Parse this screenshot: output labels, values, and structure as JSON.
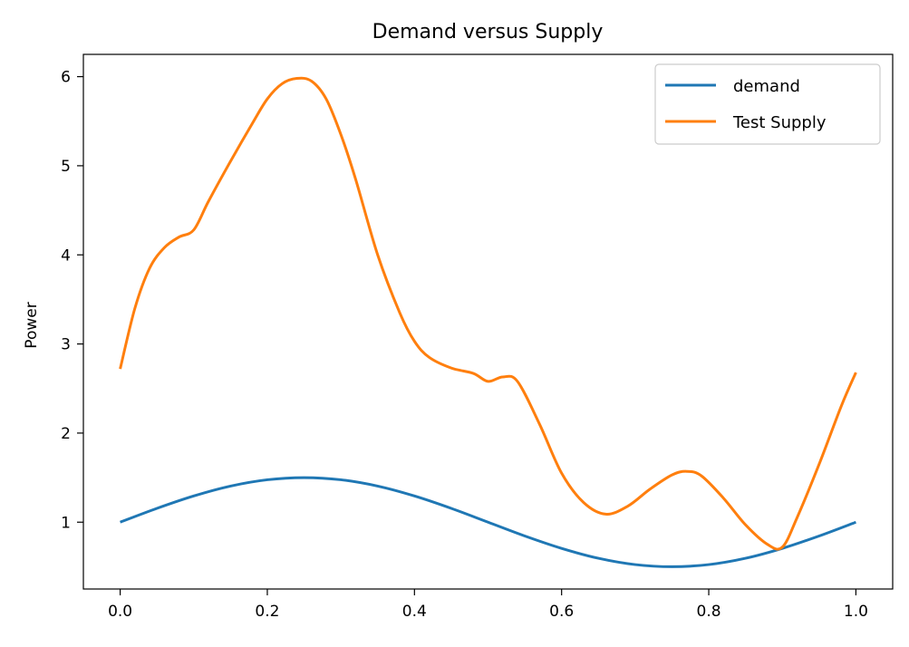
{
  "chart_data": {
    "type": "line",
    "title": "Demand versus Supply",
    "xlabel": "",
    "ylabel": "Power",
    "xlim": [
      -0.05,
      1.05
    ],
    "ylim": [
      0.25,
      6.25
    ],
    "xticks": [
      0.0,
      0.2,
      0.4,
      0.6,
      0.8,
      1.0
    ],
    "xtick_labels": [
      "0.0",
      "0.2",
      "0.4",
      "0.6",
      "0.8",
      "1.0"
    ],
    "yticks": [
      1,
      2,
      3,
      4,
      5,
      6
    ],
    "ytick_labels": [
      "1",
      "2",
      "3",
      "4",
      "5",
      "6"
    ],
    "grid": false,
    "legend_position": "top-right",
    "series": [
      {
        "name": "demand",
        "color": "#1f77b4",
        "x": [
          0.0,
          0.05,
          0.1,
          0.15,
          0.2,
          0.25,
          0.3,
          0.35,
          0.4,
          0.45,
          0.5,
          0.55,
          0.6,
          0.65,
          0.7,
          0.75,
          0.8,
          0.85,
          0.9,
          0.95,
          1.0
        ],
        "y": [
          1.0,
          1.155,
          1.294,
          1.405,
          1.476,
          1.5,
          1.476,
          1.405,
          1.294,
          1.155,
          1.0,
          0.845,
          0.706,
          0.595,
          0.524,
          0.5,
          0.524,
          0.595,
          0.706,
          0.845,
          1.0
        ]
      },
      {
        "name": "Test Supply",
        "color": "#ff7f0e",
        "x": [
          0.0,
          0.02,
          0.04,
          0.06,
          0.08,
          0.1,
          0.12,
          0.15,
          0.18,
          0.2,
          0.22,
          0.24,
          0.26,
          0.28,
          0.3,
          0.32,
          0.35,
          0.38,
          0.4,
          0.42,
          0.45,
          0.48,
          0.5,
          0.52,
          0.54,
          0.57,
          0.6,
          0.63,
          0.66,
          0.69,
          0.72,
          0.75,
          0.77,
          0.79,
          0.82,
          0.85,
          0.88,
          0.9,
          0.92,
          0.95,
          0.98,
          1.0
        ],
        "y": [
          2.72,
          3.4,
          3.85,
          4.08,
          4.2,
          4.28,
          4.6,
          5.05,
          5.48,
          5.75,
          5.92,
          5.98,
          5.95,
          5.75,
          5.35,
          4.85,
          4.0,
          3.35,
          3.03,
          2.85,
          2.73,
          2.67,
          2.58,
          2.63,
          2.58,
          2.1,
          1.55,
          1.22,
          1.09,
          1.18,
          1.37,
          1.53,
          1.57,
          1.52,
          1.27,
          0.97,
          0.75,
          0.72,
          1.05,
          1.65,
          2.3,
          2.68
        ]
      }
    ]
  }
}
